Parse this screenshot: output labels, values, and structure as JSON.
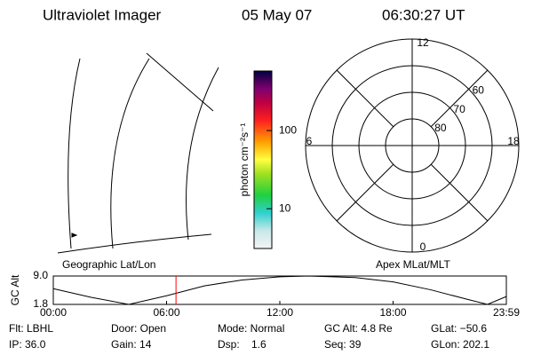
{
  "header": {
    "title": "Ultraviolet Imager",
    "date": "05 May 07",
    "time": "06:30:27 UT"
  },
  "geo_panel": {
    "label": "Geographic Lat/Lon"
  },
  "colorbar": {
    "label": "photon cm⁻²s⁻¹",
    "lim": [
      3.1,
      578
    ],
    "ticks": [
      10,
      100
    ],
    "log": true
  },
  "polar_panel": {
    "label": "Apex MLat/MLT",
    "mlt_labels": [
      12,
      18,
      6,
      0
    ],
    "mlat_lim": [
      50,
      90
    ],
    "mlat_rings": [
      60,
      70,
      80
    ]
  },
  "chart_data": {
    "type": "line",
    "ylabel": "GC Alt",
    "x": [
      0,
      2,
      4,
      6,
      8,
      10,
      12,
      13.5,
      16,
      18,
      20,
      22,
      23,
      24
    ],
    "series": [
      {
        "color": "#000000",
        "values": [
          5.8,
          3.6,
          1.8,
          4.0,
          6.5,
          8.0,
          8.8,
          9.0,
          8.6,
          7.5,
          5.5,
          3.0,
          1.8,
          3.8
        ]
      }
    ],
    "xlim": [
      0,
      24
    ],
    "ylim": [
      1.8,
      9.0
    ],
    "xticks": [
      {
        "value": 0,
        "label": "00:00"
      },
      {
        "value": 6,
        "label": "06:00"
      },
      {
        "value": 12,
        "label": "12:00"
      },
      {
        "value": 18,
        "label": "18:00"
      },
      {
        "value": 24,
        "label": "23:59"
      }
    ],
    "yticks": [
      {
        "value": 9.0,
        "label": "9.0"
      },
      {
        "value": 1.8,
        "label": "1.8"
      }
    ],
    "marker": 6.5,
    "marker_color": "#ff0000"
  },
  "footer": [
    [
      "Flt: LBHL",
      "Door: Open",
      "Mode: Normal",
      "GC Alt: 4.8 Re",
      "GLat: −50.6"
    ],
    [
      "IP: 36.0",
      "Gain: 14",
      "Dsp:    1.6",
      "Seq: 39",
      "GLon: 202.1"
    ]
  ]
}
